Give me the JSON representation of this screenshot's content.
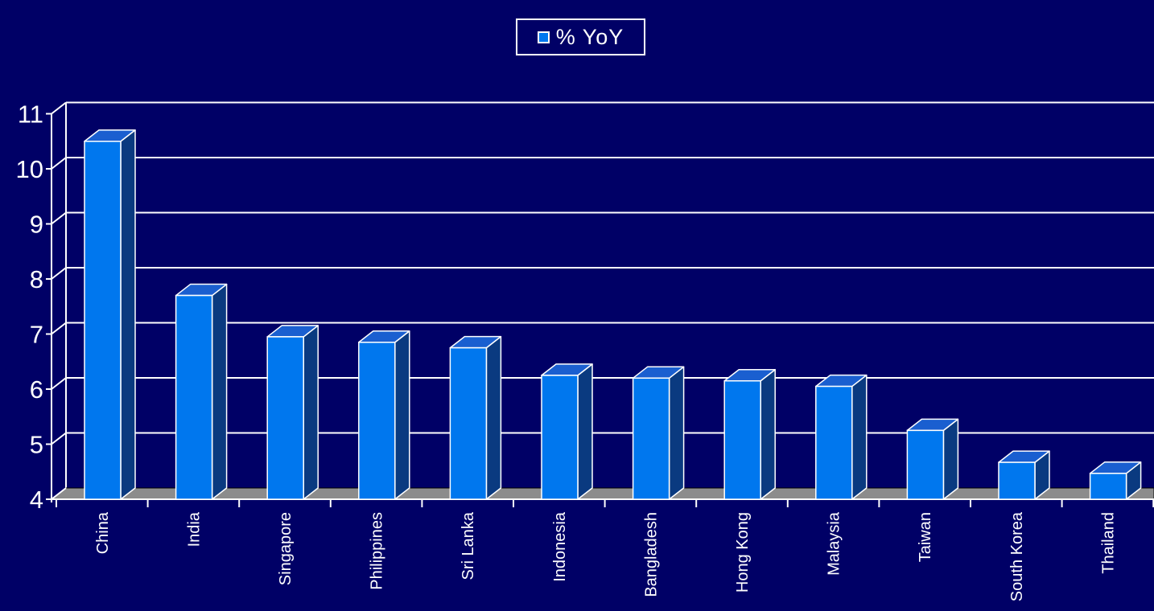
{
  "chart_data": {
    "type": "bar",
    "style": "3d-column",
    "categories": [
      "China",
      "India",
      "Singapore",
      "Philippines",
      "Sri Lanka",
      "Indonesia",
      "Bangladesh",
      "Hong Kong",
      "Malaysia",
      "Taiwan",
      "South Korea",
      "Thailand"
    ],
    "series": [
      {
        "name": "% YoY",
        "values": [
          10.5,
          7.7,
          6.95,
          6.85,
          6.75,
          6.25,
          6.2,
          6.15,
          6.05,
          5.25,
          4.67,
          4.47
        ]
      }
    ],
    "ylim": [
      4,
      11
    ],
    "yticks": [
      "4",
      "5",
      "6",
      "7",
      "8",
      "9",
      "10",
      "11"
    ],
    "grid": true,
    "legend_position": "top-center",
    "colors": {
      "background": "#000066",
      "bar_front": "#0077EE",
      "bar_top": "#1A5FD0",
      "bar_side": "#0A3A80",
      "floor": "#8C8C8C",
      "grid": "#FFFFFF",
      "text": "#FFFFFF"
    }
  }
}
